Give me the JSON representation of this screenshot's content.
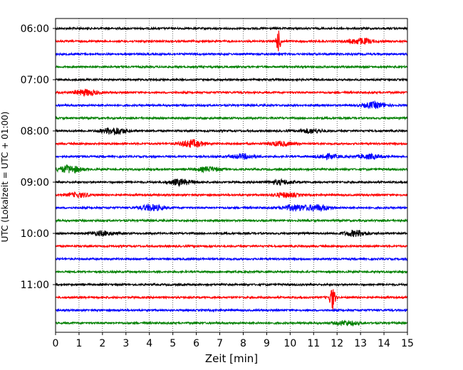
{
  "chart_data": {
    "type": "line",
    "title": "",
    "xlabel": "Zeit  [min]",
    "ylabel": "UTC (Lokalzeit = UTC + 01:00)",
    "xlim": [
      0,
      15
    ],
    "x_ticks": [
      "0",
      "1",
      "2",
      "3",
      "4",
      "5",
      "6",
      "7",
      "8",
      "9",
      "10",
      "11",
      "12",
      "13",
      "14",
      "15"
    ],
    "y_ticks": [
      "06:00",
      "07:00",
      "08:00",
      "09:00",
      "10:00",
      "11:00"
    ],
    "grid": "vertical dotted",
    "trace_interval_min": 15,
    "trace_colors": [
      "#000000",
      "#ff0000",
      "#0000ff",
      "#008000"
    ],
    "series": [
      {
        "start": "06:00",
        "color": "#000000"
      },
      {
        "start": "06:15",
        "color": "#ff0000",
        "events": [
          {
            "t": 9.5,
            "amp": 14
          },
          {
            "t": 13.0,
            "amp": 4
          }
        ]
      },
      {
        "start": "06:30",
        "color": "#0000ff"
      },
      {
        "start": "06:45",
        "color": "#008000"
      },
      {
        "start": "07:00",
        "color": "#000000"
      },
      {
        "start": "07:15",
        "color": "#ff0000",
        "events": [
          {
            "t": 1.3,
            "amp": 4
          }
        ]
      },
      {
        "start": "07:30",
        "color": "#0000ff",
        "events": [
          {
            "t": 13.6,
            "amp": 4
          }
        ]
      },
      {
        "start": "07:45",
        "color": "#008000"
      },
      {
        "start": "08:00",
        "color": "#000000",
        "events": [
          {
            "t": 2.5,
            "amp": 5
          },
          {
            "t": 10.9,
            "amp": 3
          }
        ]
      },
      {
        "start": "08:15",
        "color": "#ff0000",
        "events": [
          {
            "t": 5.8,
            "amp": 5
          },
          {
            "t": 9.6,
            "amp": 3
          }
        ]
      },
      {
        "start": "08:30",
        "color": "#0000ff",
        "events": [
          {
            "t": 8.0,
            "amp": 3
          },
          {
            "t": 11.6,
            "amp": 3
          },
          {
            "t": 13.4,
            "amp": 3
          }
        ]
      },
      {
        "start": "08:45",
        "color": "#008000",
        "events": [
          {
            "t": 0.6,
            "amp": 5
          },
          {
            "t": 6.5,
            "amp": 3
          }
        ]
      },
      {
        "start": "09:00",
        "color": "#000000",
        "events": [
          {
            "t": 5.3,
            "amp": 4
          },
          {
            "t": 9.6,
            "amp": 3
          }
        ]
      },
      {
        "start": "09:15",
        "color": "#ff0000",
        "events": [
          {
            "t": 1.0,
            "amp": 3
          },
          {
            "t": 9.8,
            "amp": 3
          }
        ]
      },
      {
        "start": "09:30",
        "color": "#0000ff",
        "events": [
          {
            "t": 4.1,
            "amp": 4
          },
          {
            "t": 10.2,
            "amp": 4
          },
          {
            "t": 11.2,
            "amp": 4
          }
        ]
      },
      {
        "start": "09:45",
        "color": "#008000"
      },
      {
        "start": "10:00",
        "color": "#000000",
        "events": [
          {
            "t": 2.0,
            "amp": 3
          },
          {
            "t": 12.8,
            "amp": 4
          }
        ]
      },
      {
        "start": "10:15",
        "color": "#ff0000"
      },
      {
        "start": "10:30",
        "color": "#0000ff"
      },
      {
        "start": "10:45",
        "color": "#008000"
      },
      {
        "start": "11:00",
        "color": "#000000"
      },
      {
        "start": "11:15",
        "color": "#ff0000",
        "events": [
          {
            "t": 11.8,
            "amp": 17
          }
        ]
      },
      {
        "start": "11:30",
        "color": "#0000ff"
      },
      {
        "start": "11:45",
        "color": "#008000",
        "events": [
          {
            "t": 12.4,
            "amp": 3
          }
        ]
      }
    ]
  }
}
